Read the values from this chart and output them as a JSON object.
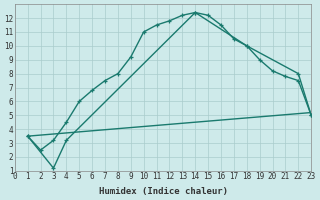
{
  "xlabel": "Humidex (Indice chaleur)",
  "bg_color": "#ceeaea",
  "grid_color": "#aacccc",
  "line_color": "#1a7a6e",
  "xlim": [
    0,
    23
  ],
  "ylim": [
    1,
    13
  ],
  "xticks": [
    0,
    1,
    2,
    3,
    4,
    5,
    6,
    7,
    8,
    9,
    10,
    11,
    12,
    13,
    14,
    15,
    16,
    17,
    18,
    19,
    20,
    21,
    22,
    23
  ],
  "yticks": [
    1,
    2,
    3,
    4,
    5,
    6,
    7,
    8,
    9,
    10,
    11,
    12
  ],
  "line1_x": [
    1,
    2,
    3,
    4,
    5,
    6,
    7,
    8,
    9,
    10,
    11,
    12,
    13,
    14,
    15,
    16,
    17,
    18,
    19,
    20,
    21,
    22,
    23
  ],
  "line1_y": [
    3.5,
    2.5,
    3.2,
    4.5,
    6.0,
    6.8,
    7.5,
    8.0,
    9.2,
    11.0,
    11.5,
    11.8,
    12.2,
    12.4,
    12.2,
    11.5,
    10.5,
    10.0,
    9.0,
    8.2,
    7.8,
    7.5,
    5.0
  ],
  "line2_x": [
    1,
    3,
    4,
    14,
    18,
    22,
    23
  ],
  "line2_y": [
    3.5,
    1.2,
    3.2,
    12.4,
    10.0,
    8.0,
    5.0
  ],
  "line3_x": [
    1,
    23
  ],
  "line3_y": [
    3.5,
    5.2
  ],
  "marker_size": 3.5,
  "linewidth": 1.0
}
